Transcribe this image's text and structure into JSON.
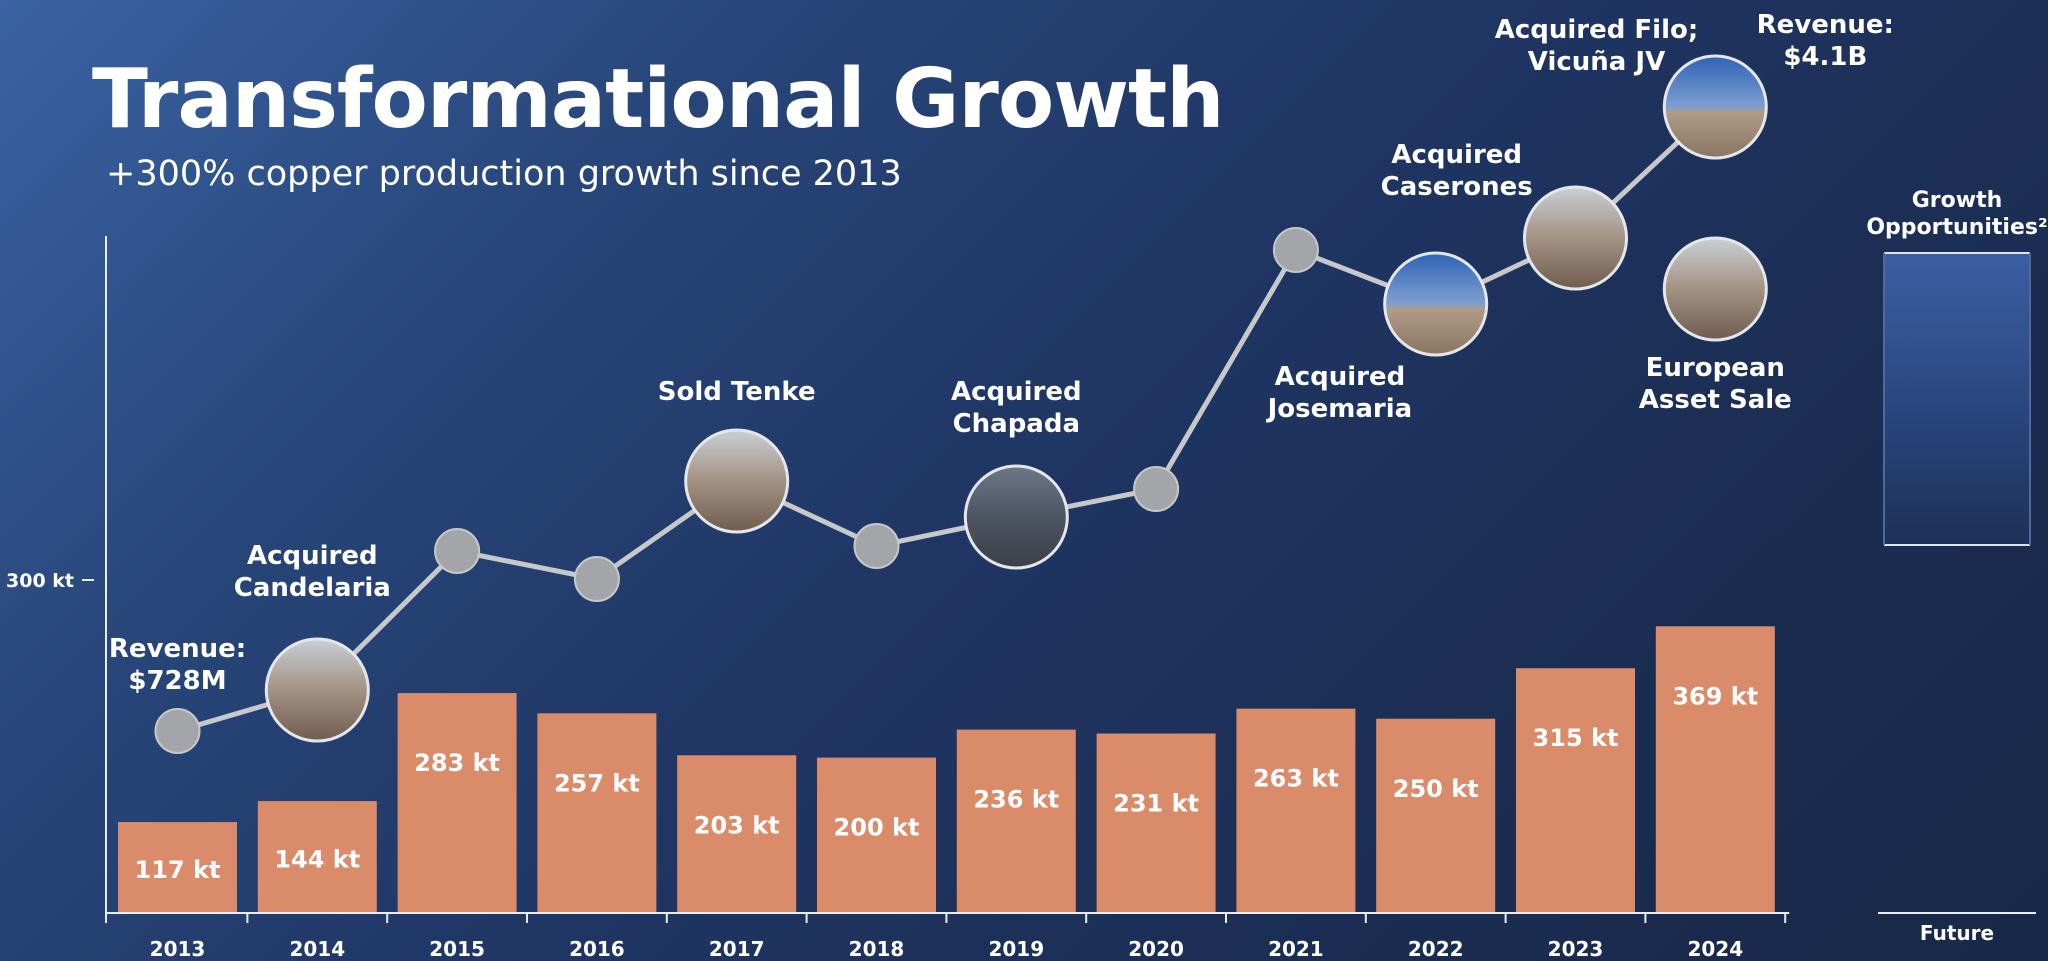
{
  "title": "Transformational Growth",
  "subtitle": "+300% copper production growth since 2013",
  "colors": {
    "background": "#1f3563",
    "bar": "#d98b6a",
    "trend_line": "#c7c8ca",
    "marker": "#a3a5a8"
  },
  "chart_data": {
    "type": "bar",
    "categories": [
      "2013",
      "2014",
      "2015",
      "2016",
      "2017",
      "2018",
      "2019",
      "2020",
      "2021",
      "2022",
      "2023",
      "2024"
    ],
    "series": [
      {
        "values": [
          117,
          144,
          283,
          257,
          203,
          200,
          236,
          231,
          263,
          250,
          315,
          369
        ]
      }
    ],
    "value_labels": [
      "117 kt",
      "144 kt",
      "283 kt",
      "257 kt",
      "203 kt",
      "200 kt",
      "236 kt",
      "231 kt",
      "263 kt",
      "250 kt",
      "315 kt",
      "369 kt"
    ],
    "ytick_label": "300 kt",
    "ytick_value": 300,
    "ylim": [
      0,
      600
    ],
    "grid": false,
    "revenue_trend": {
      "markers": [
        "dot",
        "photo",
        "dot",
        "dot",
        "photo",
        "dot",
        "photo",
        "dot",
        "dot",
        "photo",
        "photo",
        "photo"
      ],
      "start_label": "Revenue: $728M",
      "end_label": "Revenue: $4.1B"
    },
    "annotations": [
      {
        "category": "2014",
        "lines": [
          "Acquired",
          "Candelaria"
        ]
      },
      {
        "category": "2017",
        "lines": [
          "Sold Tenke"
        ]
      },
      {
        "category": "2019",
        "lines": [
          "Acquired",
          "Chapada"
        ]
      },
      {
        "category": "2021",
        "lines": [
          "Acquired",
          "Josemaria"
        ]
      },
      {
        "category": "2022",
        "lines": [
          "Acquired",
          "Caserones"
        ]
      },
      {
        "category": "2023",
        "lines": [
          "Acquired Filo;",
          "Vicuña JV"
        ]
      },
      {
        "category": "2024",
        "lines": [
          "European",
          "Asset Sale"
        ]
      }
    ],
    "revenue_labels": [
      {
        "category": "2013",
        "lines": [
          "Revenue:",
          "$728M"
        ]
      },
      {
        "category": "2024",
        "lines": [
          "Revenue:",
          "$4.1B"
        ]
      }
    ],
    "future": {
      "category": "Future",
      "label_lines": [
        "Growth",
        "Opportunities²"
      ]
    }
  }
}
